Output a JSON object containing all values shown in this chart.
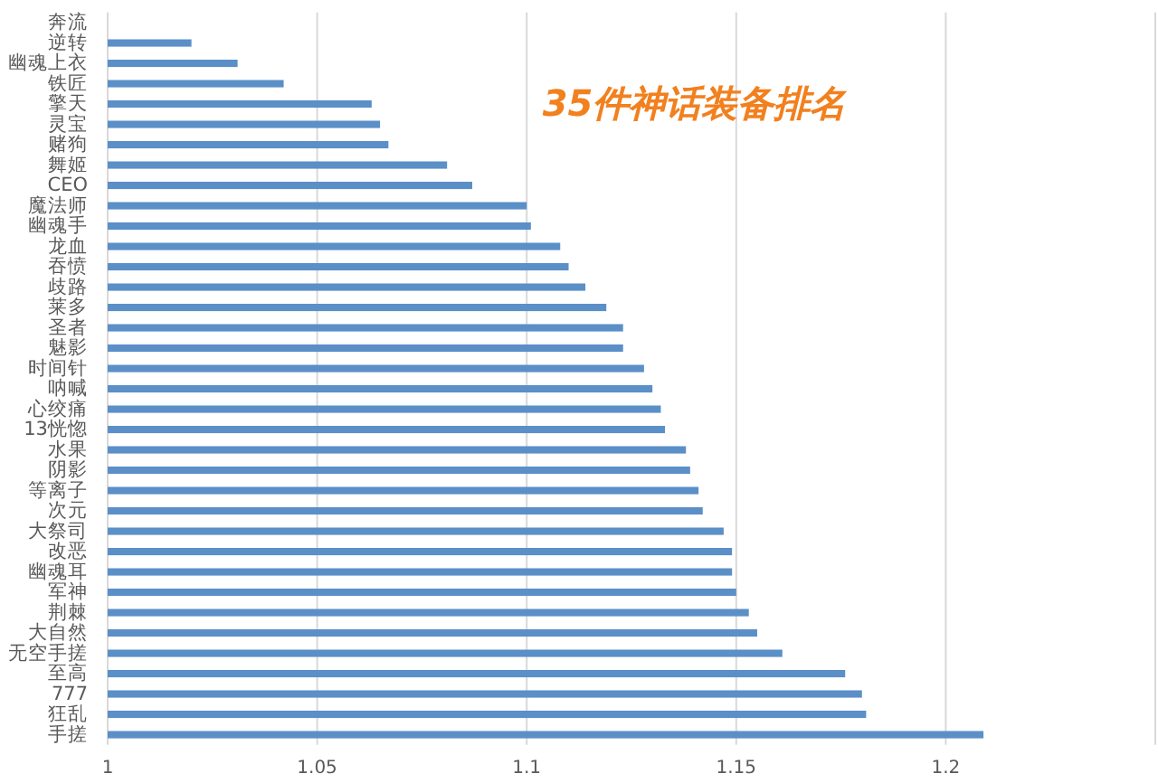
{
  "chart_data": {
    "type": "bar",
    "orientation": "horizontal",
    "title": "35件神话装备排名",
    "categories": [
      "奔流",
      "逆转",
      "幽魂上衣",
      "铁匠",
      "擎天",
      "灵宝",
      "赌狗",
      "舞姬",
      "CEO",
      "魔法师",
      "幽魂手",
      "龙血",
      "吞愤",
      "歧路",
      "莱多",
      "圣者",
      "魅影",
      "时间针",
      "呐喊",
      "心绞痛",
      "13恍惚",
      "水果",
      "阴影",
      "等离子",
      "次元",
      "大祭司",
      "改恶",
      "幽魂耳",
      "军神",
      "荆棘",
      "大自然",
      "无空手搓",
      "至高",
      "777",
      "狂乱",
      "手搓"
    ],
    "values": [
      1,
      1.02,
      1.031,
      1.042,
      1.063,
      1.065,
      1.067,
      1.081,
      1.087,
      1.1,
      1.101,
      1.108,
      1.11,
      1.114,
      1.119,
      1.123,
      1.123,
      1.128,
      1.13,
      1.132,
      1.133,
      1.138,
      1.139,
      1.141,
      1.142,
      1.147,
      1.149,
      1.149,
      1.15,
      1.153,
      1.155,
      1.161,
      1.176,
      1.18,
      1.181,
      1.209
    ],
    "color": "#5b8fc7",
    "xlim": [
      1,
      1.25
    ],
    "xticks": [
      1,
      1.05,
      1.1,
      1.15,
      1.2,
      {
        "value": 1.25,
        "label": null
      }
    ],
    "grid": "x"
  }
}
